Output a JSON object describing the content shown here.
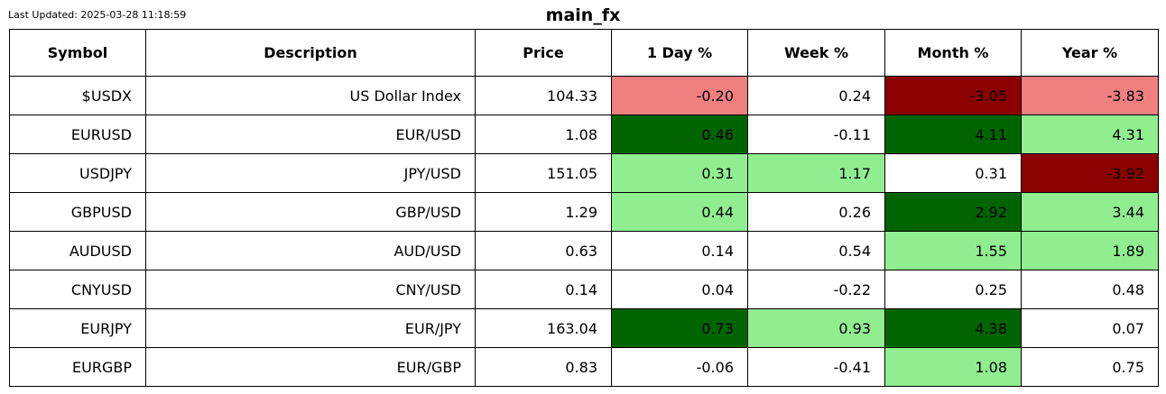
{
  "last_updated": "Last Updated: 2025-03-28 11:18:59",
  "title": "main_fx",
  "colors": {
    "strong_negative": "#8b0000",
    "negative": "#f08080",
    "neutral": "#ffffff",
    "positive": "#90ee90",
    "strong_positive": "#006400"
  },
  "chart_data": {
    "type": "table",
    "title": "main_fx",
    "columns": [
      "Symbol",
      "Description",
      "Price",
      "1 Day %",
      "Week %",
      "Month %",
      "Year %"
    ],
    "rows": [
      {
        "symbol": "$USDX",
        "description": "US Dollar Index",
        "price": "104.33",
        "cells": [
          {
            "value": "-0.20",
            "color": "negative"
          },
          {
            "value": "0.24",
            "color": "neutral"
          },
          {
            "value": "-3.05",
            "color": "strong_negative"
          },
          {
            "value": "-3.83",
            "color": "negative"
          }
        ]
      },
      {
        "symbol": "EURUSD",
        "description": "EUR/USD",
        "price": "1.08",
        "cells": [
          {
            "value": "0.46",
            "color": "strong_positive"
          },
          {
            "value": "-0.11",
            "color": "neutral"
          },
          {
            "value": "4.11",
            "color": "strong_positive"
          },
          {
            "value": "4.31",
            "color": "positive"
          }
        ]
      },
      {
        "symbol": "USDJPY",
        "description": "JPY/USD",
        "price": "151.05",
        "cells": [
          {
            "value": "0.31",
            "color": "positive"
          },
          {
            "value": "1.17",
            "color": "positive"
          },
          {
            "value": "0.31",
            "color": "neutral"
          },
          {
            "value": "-3.92",
            "color": "strong_negative"
          }
        ]
      },
      {
        "symbol": "GBPUSD",
        "description": "GBP/USD",
        "price": "1.29",
        "cells": [
          {
            "value": "0.44",
            "color": "positive"
          },
          {
            "value": "0.26",
            "color": "neutral"
          },
          {
            "value": "2.92",
            "color": "strong_positive"
          },
          {
            "value": "3.44",
            "color": "positive"
          }
        ]
      },
      {
        "symbol": "AUDUSD",
        "description": "AUD/USD",
        "price": "0.63",
        "cells": [
          {
            "value": "0.14",
            "color": "neutral"
          },
          {
            "value": "0.54",
            "color": "neutral"
          },
          {
            "value": "1.55",
            "color": "positive"
          },
          {
            "value": "1.89",
            "color": "positive"
          }
        ]
      },
      {
        "symbol": "CNYUSD",
        "description": "CNY/USD",
        "price": "0.14",
        "cells": [
          {
            "value": "0.04",
            "color": "neutral"
          },
          {
            "value": "-0.22",
            "color": "neutral"
          },
          {
            "value": "0.25",
            "color": "neutral"
          },
          {
            "value": "0.48",
            "color": "neutral"
          }
        ]
      },
      {
        "symbol": "EURJPY",
        "description": "EUR/JPY",
        "price": "163.04",
        "cells": [
          {
            "value": "0.73",
            "color": "strong_positive"
          },
          {
            "value": "0.93",
            "color": "positive"
          },
          {
            "value": "4.38",
            "color": "strong_positive"
          },
          {
            "value": "0.07",
            "color": "neutral"
          }
        ]
      },
      {
        "symbol": "EURGBP",
        "description": "EUR/GBP",
        "price": "0.83",
        "cells": [
          {
            "value": "-0.06",
            "color": "neutral"
          },
          {
            "value": "-0.41",
            "color": "neutral"
          },
          {
            "value": "1.08",
            "color": "positive"
          },
          {
            "value": "0.75",
            "color": "neutral"
          }
        ]
      }
    ]
  }
}
